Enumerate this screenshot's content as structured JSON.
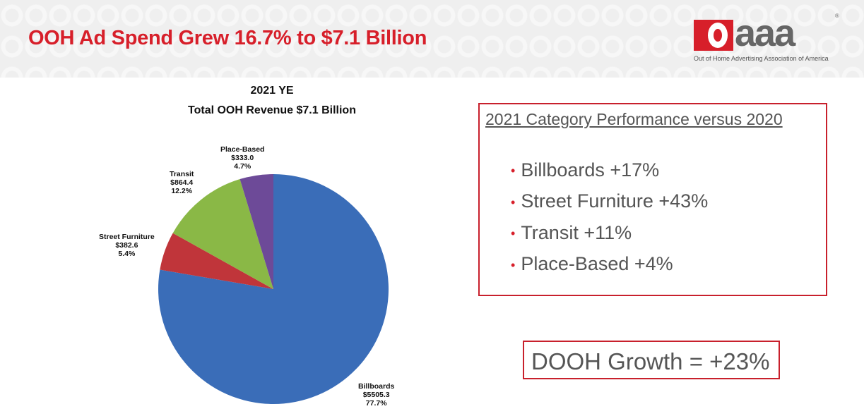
{
  "header": {
    "title": "OOH Ad Spend Grew 16.7% to $7.1 Billion",
    "logo_text": "aaa",
    "logo_tagline": "Out of Home Advertising Association of America"
  },
  "chart_data": {
    "type": "pie",
    "title": "2021 YE",
    "subtitle": "Total OOH Revenue $7.1 Billion",
    "slices": [
      {
        "name": "Billboards",
        "value_label": "$5505.3",
        "value": 5505.3,
        "percent": 77.7,
        "percent_label": "77.7%",
        "color": "#3a6db8"
      },
      {
        "name": "Street Furniture",
        "value_label": "$382.6",
        "value": 382.6,
        "percent": 5.4,
        "percent_label": "5.4%",
        "color": "#c0353a"
      },
      {
        "name": "Transit",
        "value_label": "$864.4",
        "value": 864.4,
        "percent": 12.2,
        "percent_label": "12.2%",
        "color": "#8ab846"
      },
      {
        "name": "Place-Based",
        "value_label": "$333.0",
        "value": 333.0,
        "percent": 4.7,
        "percent_label": "4.7%",
        "color": "#6d4a98"
      }
    ]
  },
  "performance": {
    "heading": "2021 Category Performance versus 2020",
    "items": [
      "Billboards +17%",
      "Street Furniture +43%",
      "Transit +11%",
      "Place-Based +4%"
    ]
  },
  "dooh": {
    "text": "DOOH Growth = +23%"
  }
}
